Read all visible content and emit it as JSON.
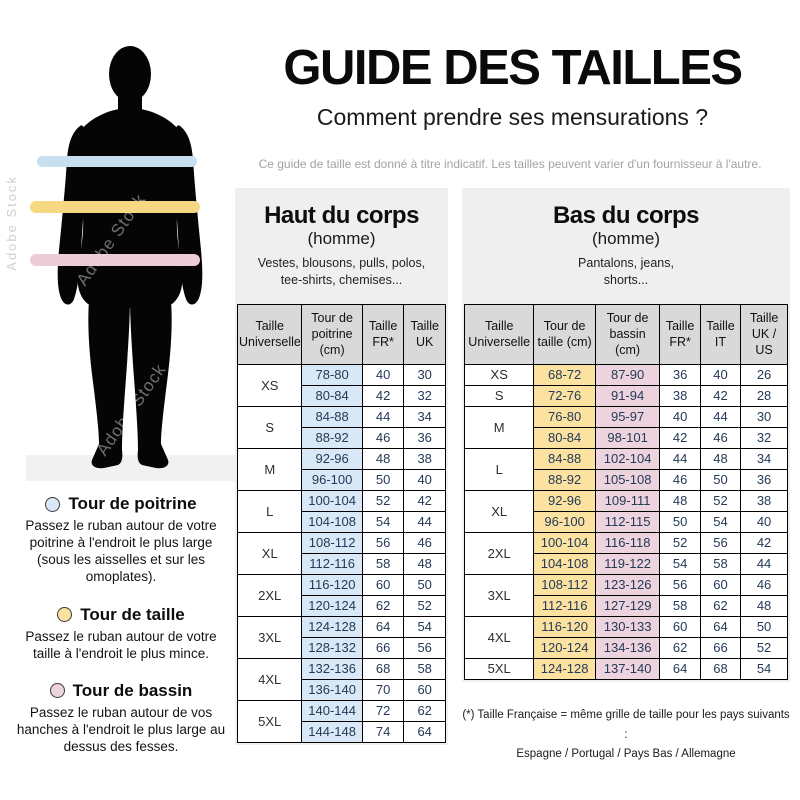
{
  "title": "GUIDE DES TAILLES",
  "subtitle": "Comment prendre ses mensurations ?",
  "disclaimer": "Ce guide de taille est donné à titre indicatif. Les tailles peuvent varier d'un fournisseur à l'autre.",
  "watermark": "Adobe Stock",
  "colors": {
    "band_blue": "#c8dff0",
    "band_yellow": "#f6d883",
    "band_pink": "#ecccd6",
    "cell_blue": "#d9e8f6",
    "cell_yellow": "#fbe2a1",
    "cell_pink": "#ecd3dd",
    "header_gray": "#d9d9d9",
    "panel_gray": "#efefef"
  },
  "legend": [
    {
      "color": "cell_blue",
      "title": "Tour de poitrine",
      "text": "Passez le ruban autour de votre poitrine à l'endroit le plus large (sous les aisselles et sur les omoplates)."
    },
    {
      "color": "cell_yellow",
      "title": "Tour de taille",
      "text": "Passez le ruban autour de votre taille à l'endroit le plus mince."
    },
    {
      "color": "cell_pink",
      "title": "Tour de bassin",
      "text": "Passez le ruban autour de vos hanches à l'endroit le plus large au dessus des fesses."
    }
  ],
  "upper_table": {
    "title": "Haut du corps",
    "subtitle": "(homme)",
    "description": "Vestes, blousons, pulls, polos,\ntee-shirts, chemises...",
    "headers": [
      "Taille Universelle",
      "Tour de poitrine (cm)",
      "Taille FR*",
      "Taille UK"
    ],
    "col_colors": [
      "",
      "cell_blue",
      "",
      ""
    ],
    "groups": [
      {
        "size": "XS",
        "rows": [
          [
            "78-80",
            "40",
            "30"
          ],
          [
            "80-84",
            "42",
            "32"
          ]
        ]
      },
      {
        "size": "S",
        "rows": [
          [
            "84-88",
            "44",
            "34"
          ],
          [
            "88-92",
            "46",
            "36"
          ]
        ]
      },
      {
        "size": "M",
        "rows": [
          [
            "92-96",
            "48",
            "38"
          ],
          [
            "96-100",
            "50",
            "40"
          ]
        ]
      },
      {
        "size": "L",
        "rows": [
          [
            "100-104",
            "52",
            "42"
          ],
          [
            "104-108",
            "54",
            "44"
          ]
        ]
      },
      {
        "size": "XL",
        "rows": [
          [
            "108-112",
            "56",
            "46"
          ],
          [
            "112-116",
            "58",
            "48"
          ]
        ]
      },
      {
        "size": "2XL",
        "rows": [
          [
            "116-120",
            "60",
            "50"
          ],
          [
            "120-124",
            "62",
            "52"
          ]
        ]
      },
      {
        "size": "3XL",
        "rows": [
          [
            "124-128",
            "64",
            "54"
          ],
          [
            "128-132",
            "66",
            "56"
          ]
        ]
      },
      {
        "size": "4XL",
        "rows": [
          [
            "132-136",
            "68",
            "58"
          ],
          [
            "136-140",
            "70",
            "60"
          ]
        ]
      },
      {
        "size": "5XL",
        "rows": [
          [
            "140-144",
            "72",
            "62"
          ],
          [
            "144-148",
            "74",
            "64"
          ]
        ]
      }
    ]
  },
  "lower_table": {
    "title": "Bas du corps",
    "subtitle": "(homme)",
    "description": "Pantalons, jeans,\nshorts...",
    "headers": [
      "Taille Universelle",
      "Tour de taille (cm)",
      "Tour de bassin (cm)",
      "Taille FR*",
      "Taille IT",
      "Taille UK / US"
    ],
    "col_colors": [
      "",
      "cell_yellow",
      "cell_pink",
      "",
      "",
      ""
    ],
    "groups": [
      {
        "size": "XS",
        "rows": [
          [
            "68-72",
            "87-90",
            "36",
            "40",
            "26"
          ]
        ]
      },
      {
        "size": "S",
        "rows": [
          [
            "72-76",
            "91-94",
            "38",
            "42",
            "28"
          ]
        ]
      },
      {
        "size": "M",
        "rows": [
          [
            "76-80",
            "95-97",
            "40",
            "44",
            "30"
          ],
          [
            "80-84",
            "98-101",
            "42",
            "46",
            "32"
          ]
        ]
      },
      {
        "size": "L",
        "rows": [
          [
            "84-88",
            "102-104",
            "44",
            "48",
            "34"
          ],
          [
            "88-92",
            "105-108",
            "46",
            "50",
            "36"
          ]
        ]
      },
      {
        "size": "XL",
        "rows": [
          [
            "92-96",
            "109-111",
            "48",
            "52",
            "38"
          ],
          [
            "96-100",
            "112-115",
            "50",
            "54",
            "40"
          ]
        ]
      },
      {
        "size": "2XL",
        "rows": [
          [
            "100-104",
            "116-118",
            "52",
            "56",
            "42"
          ],
          [
            "104-108",
            "119-122",
            "54",
            "58",
            "44"
          ]
        ]
      },
      {
        "size": "3XL",
        "rows": [
          [
            "108-112",
            "123-126",
            "56",
            "60",
            "46"
          ],
          [
            "112-116",
            "127-129",
            "58",
            "62",
            "48"
          ]
        ]
      },
      {
        "size": "4XL",
        "rows": [
          [
            "116-120",
            "130-133",
            "60",
            "64",
            "50"
          ],
          [
            "120-124",
            "134-136",
            "62",
            "66",
            "52"
          ]
        ]
      },
      {
        "size": "5XL",
        "rows": [
          [
            "124-128",
            "137-140",
            "64",
            "68",
            "54"
          ]
        ]
      }
    ]
  },
  "footnote_line1": "(*) Taille Française = même grille de taille pour les pays suivants :",
  "footnote_line2": "Espagne / Portugal / Pays Bas / Allemagne"
}
